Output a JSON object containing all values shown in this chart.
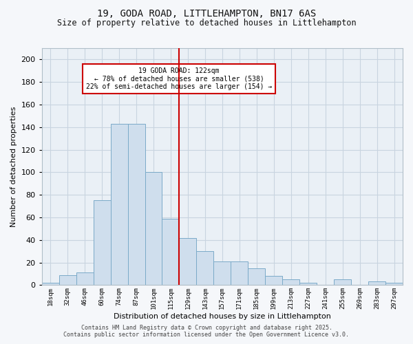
{
  "title": "19, GODA ROAD, LITTLEHAMPTON, BN17 6AS",
  "subtitle": "Size of property relative to detached houses in Littlehampton",
  "xlabel": "Distribution of detached houses by size in Littlehampton",
  "ylabel": "Number of detached properties",
  "bin_labels": [
    "18sqm",
    "32sqm",
    "46sqm",
    "60sqm",
    "74sqm",
    "87sqm",
    "101sqm",
    "115sqm",
    "129sqm",
    "143sqm",
    "157sqm",
    "171sqm",
    "185sqm",
    "199sqm",
    "213sqm",
    "227sqm",
    "241sqm",
    "255sqm",
    "269sqm",
    "283sqm",
    "297sqm"
  ],
  "bar_heights": [
    2,
    9,
    11,
    75,
    143,
    143,
    100,
    59,
    42,
    30,
    21,
    21,
    15,
    8,
    5,
    2,
    0,
    5,
    0,
    3,
    2
  ],
  "bar_color": "#cfdeed",
  "bar_edge_color": "#7aaac8",
  "vline_x": 7.5,
  "annotation_title": "19 GODA ROAD: 122sqm",
  "annotation_line1": "← 78% of detached houses are smaller (538)",
  "annotation_line2": "22% of semi-detached houses are larger (154) →",
  "annotation_box_color": "#ffffff",
  "annotation_box_edge": "#cc0000",
  "vline_color": "#cc0000",
  "ylim": [
    0,
    210
  ],
  "yticks": [
    0,
    20,
    40,
    60,
    80,
    100,
    120,
    140,
    160,
    180,
    200
  ],
  "footer_line1": "Contains HM Land Registry data © Crown copyright and database right 2025.",
  "footer_line2": "Contains public sector information licensed under the Open Government Licence v3.0.",
  "plot_bg_color": "#eaf0f6",
  "fig_bg_color": "#f5f7fa",
  "grid_color": "#c8d4e0",
  "title_fontsize": 10,
  "subtitle_fontsize": 8.5,
  "ylabel_fontsize": 8,
  "xlabel_fontsize": 8,
  "ytick_fontsize": 8,
  "xtick_fontsize": 6.5,
  "footer_fontsize": 6
}
